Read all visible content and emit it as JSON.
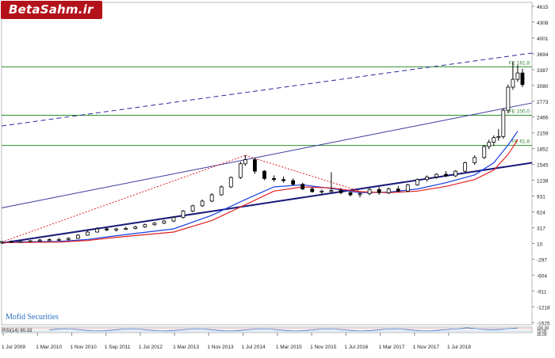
{
  "logo": {
    "text": "BetaSahm.ir",
    "color": "#b3121b"
  },
  "watermark": "Mofid Securities",
  "chart_data": {
    "type": "candlestick",
    "title": "",
    "x_tick_labels": [
      "1 Jul 2009",
      "1 Mar 2010",
      "1 Nov 2010",
      "1 Sep 2011",
      "1 Jul 2012",
      "1 Mar 2013",
      "1 Nov 2013",
      "1 Jul 2014",
      "1 Mar 2015",
      "1 Nov 2015",
      "1 Jul 2016",
      "1 Mar 2017",
      "1 Nov 2017",
      "1 Jul 2018"
    ],
    "y_tick_labels": [
      "4615",
      "4308",
      "4001",
      "3694",
      "3387",
      "3080",
      "2773",
      "2466",
      "2159",
      "1852",
      "1545",
      "1238",
      "931",
      "624",
      "317",
      "10",
      "-297",
      "-604",
      "-911",
      "-1218",
      "-1525"
    ],
    "y_range": [
      -1525,
      4615
    ],
    "fibonacci_levels": [
      {
        "label": "FE 161.8",
        "value": 3387
      },
      {
        "label": "FE 100.0",
        "value": 2466
      },
      {
        "label": "FE 61.8",
        "value": 1890
      }
    ],
    "ohlc": [
      {
        "date": "2009-07",
        "o": 40,
        "h": 70,
        "l": 20,
        "c": 60
      },
      {
        "date": "2009-09",
        "o": 60,
        "h": 80,
        "l": 40,
        "c": 55
      },
      {
        "date": "2009-11",
        "o": 55,
        "h": 80,
        "l": 40,
        "c": 60
      },
      {
        "date": "2010-01",
        "o": 60,
        "h": 85,
        "l": 45,
        "c": 75
      },
      {
        "date": "2010-03",
        "o": 75,
        "h": 110,
        "l": 60,
        "c": 90
      },
      {
        "date": "2010-05",
        "o": 90,
        "h": 120,
        "l": 70,
        "c": 95
      },
      {
        "date": "2010-07",
        "o": 95,
        "h": 130,
        "l": 80,
        "c": 100
      },
      {
        "date": "2010-09",
        "o": 100,
        "h": 140,
        "l": 80,
        "c": 120
      },
      {
        "date": "2010-11",
        "o": 120,
        "h": 200,
        "l": 110,
        "c": 180
      },
      {
        "date": "2011-01",
        "o": 180,
        "h": 260,
        "l": 170,
        "c": 240
      },
      {
        "date": "2011-03",
        "o": 240,
        "h": 330,
        "l": 230,
        "c": 300
      },
      {
        "date": "2011-05",
        "o": 300,
        "h": 330,
        "l": 260,
        "c": 280
      },
      {
        "date": "2011-07",
        "o": 280,
        "h": 320,
        "l": 250,
        "c": 300
      },
      {
        "date": "2011-09",
        "o": 300,
        "h": 340,
        "l": 280,
        "c": 310
      },
      {
        "date": "2011-11",
        "o": 310,
        "h": 360,
        "l": 290,
        "c": 340
      },
      {
        "date": "2012-01",
        "o": 340,
        "h": 400,
        "l": 320,
        "c": 380
      },
      {
        "date": "2012-03",
        "o": 380,
        "h": 430,
        "l": 360,
        "c": 410
      },
      {
        "date": "2012-05",
        "o": 410,
        "h": 470,
        "l": 390,
        "c": 450
      },
      {
        "date": "2012-07",
        "o": 450,
        "h": 540,
        "l": 430,
        "c": 520
      },
      {
        "date": "2012-09",
        "o": 520,
        "h": 660,
        "l": 500,
        "c": 640
      },
      {
        "date": "2012-11",
        "o": 640,
        "h": 760,
        "l": 620,
        "c": 740
      },
      {
        "date": "2013-01",
        "o": 740,
        "h": 860,
        "l": 720,
        "c": 830
      },
      {
        "date": "2013-03",
        "o": 830,
        "h": 980,
        "l": 810,
        "c": 950
      },
      {
        "date": "2013-05",
        "o": 950,
        "h": 1130,
        "l": 930,
        "c": 1100
      },
      {
        "date": "2013-07",
        "o": 1100,
        "h": 1300,
        "l": 1080,
        "c": 1280
      },
      {
        "date": "2013-09",
        "o": 1280,
        "h": 1580,
        "l": 1250,
        "c": 1540
      },
      {
        "date": "2013-10",
        "o": 1540,
        "h": 1700,
        "l": 1500,
        "c": 1620
      },
      {
        "date": "2013-12",
        "o": 1620,
        "h": 1650,
        "l": 1350,
        "c": 1400
      },
      {
        "date": "2014-02",
        "o": 1400,
        "h": 1420,
        "l": 1230,
        "c": 1260
      },
      {
        "date": "2014-04",
        "o": 1260,
        "h": 1320,
        "l": 1200,
        "c": 1240
      },
      {
        "date": "2014-06",
        "o": 1240,
        "h": 1300,
        "l": 1180,
        "c": 1220
      },
      {
        "date": "2014-08",
        "o": 1220,
        "h": 1260,
        "l": 1120,
        "c": 1150
      },
      {
        "date": "2014-10",
        "o": 1150,
        "h": 1180,
        "l": 1040,
        "c": 1060
      },
      {
        "date": "2014-12",
        "o": 1060,
        "h": 1100,
        "l": 990,
        "c": 1010
      },
      {
        "date": "2015-02",
        "o": 1010,
        "h": 1050,
        "l": 960,
        "c": 1020
      },
      {
        "date": "2015-04",
        "o": 1020,
        "h": 1380,
        "l": 990,
        "c": 1030
      },
      {
        "date": "2015-06",
        "o": 1030,
        "h": 1080,
        "l": 960,
        "c": 990
      },
      {
        "date": "2015-08",
        "o": 990,
        "h": 1020,
        "l": 920,
        "c": 950
      },
      {
        "date": "2015-10",
        "o": 950,
        "h": 1000,
        "l": 900,
        "c": 970
      },
      {
        "date": "2015-12",
        "o": 970,
        "h": 1080,
        "l": 940,
        "c": 1050
      },
      {
        "date": "2016-02",
        "o": 1050,
        "h": 1100,
        "l": 950,
        "c": 990
      },
      {
        "date": "2016-04",
        "o": 990,
        "h": 1090,
        "l": 960,
        "c": 1060
      },
      {
        "date": "2016-06",
        "o": 1060,
        "h": 1120,
        "l": 1000,
        "c": 1020
      },
      {
        "date": "2016-08",
        "o": 1020,
        "h": 1160,
        "l": 1000,
        "c": 1140
      },
      {
        "date": "2016-10",
        "o": 1140,
        "h": 1260,
        "l": 1120,
        "c": 1240
      },
      {
        "date": "2016-12",
        "o": 1240,
        "h": 1320,
        "l": 1200,
        "c": 1290
      },
      {
        "date": "2017-02",
        "o": 1290,
        "h": 1360,
        "l": 1260,
        "c": 1340
      },
      {
        "date": "2017-04",
        "o": 1340,
        "h": 1400,
        "l": 1290,
        "c": 1310
      },
      {
        "date": "2017-06",
        "o": 1310,
        "h": 1420,
        "l": 1290,
        "c": 1400
      },
      {
        "date": "2017-08",
        "o": 1400,
        "h": 1580,
        "l": 1380,
        "c": 1560
      },
      {
        "date": "2017-10",
        "o": 1560,
        "h": 1700,
        "l": 1520,
        "c": 1660
      },
      {
        "date": "2017-12",
        "o": 1660,
        "h": 1900,
        "l": 1630,
        "c": 1870
      },
      {
        "date": "2018-01",
        "o": 1870,
        "h": 2000,
        "l": 1820,
        "c": 1950
      },
      {
        "date": "2018-02",
        "o": 1950,
        "h": 2080,
        "l": 1880,
        "c": 2040
      },
      {
        "date": "2018-03",
        "o": 2040,
        "h": 2200,
        "l": 1980,
        "c": 2060
      },
      {
        "date": "2018-04",
        "o": 2060,
        "h": 2600,
        "l": 2020,
        "c": 2560
      },
      {
        "date": "2018-05",
        "o": 2560,
        "h": 3050,
        "l": 2500,
        "c": 3000
      },
      {
        "date": "2018-06",
        "o": 3000,
        "h": 3480,
        "l": 2950,
        "c": 3150
      },
      {
        "date": "2018-07",
        "o": 3150,
        "h": 3420,
        "l": 3100,
        "c": 3270
      },
      {
        "date": "2018-08",
        "o": 3270,
        "h": 3350,
        "l": 3000,
        "c": 3050
      }
    ],
    "moving_averages": [
      {
        "color": "#1a3fe0",
        "points": [
          [
            "2009-07",
            50
          ],
          [
            "2010-07",
            60
          ],
          [
            "2011-01",
            100
          ],
          [
            "2011-07",
            170
          ],
          [
            "2012-07",
            300
          ],
          [
            "2013-03",
            560
          ],
          [
            "2013-10",
            860
          ],
          [
            "2014-04",
            1100
          ],
          [
            "2014-10",
            1140
          ],
          [
            "2015-04",
            1070
          ],
          [
            "2015-10",
            990
          ],
          [
            "2016-04",
            1000
          ],
          [
            "2016-10",
            1060
          ],
          [
            "2017-04",
            1180
          ],
          [
            "2017-10",
            1330
          ],
          [
            "2018-02",
            1560
          ],
          [
            "2018-05",
            1900
          ],
          [
            "2018-07",
            2160
          ]
        ]
      },
      {
        "color": "#e02020",
        "points": [
          [
            "2009-07",
            40
          ],
          [
            "2010-07",
            50
          ],
          [
            "2011-01",
            80
          ],
          [
            "2011-07",
            140
          ],
          [
            "2012-07",
            240
          ],
          [
            "2013-03",
            460
          ],
          [
            "2013-10",
            760
          ],
          [
            "2014-04",
            1020
          ],
          [
            "2014-10",
            1100
          ],
          [
            "2015-04",
            1080
          ],
          [
            "2015-10",
            1010
          ],
          [
            "2016-04",
            990
          ],
          [
            "2016-10",
            1020
          ],
          [
            "2017-04",
            1110
          ],
          [
            "2017-10",
            1240
          ],
          [
            "2018-02",
            1420
          ],
          [
            "2018-05",
            1720
          ],
          [
            "2018-07",
            2000
          ]
        ]
      }
    ],
    "trend_lines": [
      {
        "style": "solid",
        "color": "#1a1a7a",
        "width": 2,
        "from": [
          "2009-07",
          30
        ],
        "to": [
          "2018-10",
          1560
        ]
      },
      {
        "style": "solid",
        "color": "#3a3a9a",
        "width": 1,
        "from": [
          "2009-07",
          700
        ],
        "to": [
          "2018-10",
          2700
        ]
      },
      {
        "style": "dashed",
        "color": "#2a2aa0",
        "width": 1,
        "from": [
          "2009-07",
          2260
        ],
        "to": [
          "2018-10",
          3650
        ]
      },
      {
        "style": "dotted",
        "color": "#e02020",
        "width": 1,
        "from": [
          "2009-07",
          50
        ],
        "to": [
          "2013-10",
          1700
        ]
      },
      {
        "style": "dotted",
        "color": "#e02020",
        "width": 1,
        "from": [
          "2013-10",
          1700
        ],
        "to": [
          "2015-11",
          990
        ]
      }
    ],
    "rsi": {
      "label": "RSI(14) 90.33",
      "value": 90.33,
      "levels": [
        "100.00",
        "70.00",
        "30.00"
      ]
    }
  }
}
